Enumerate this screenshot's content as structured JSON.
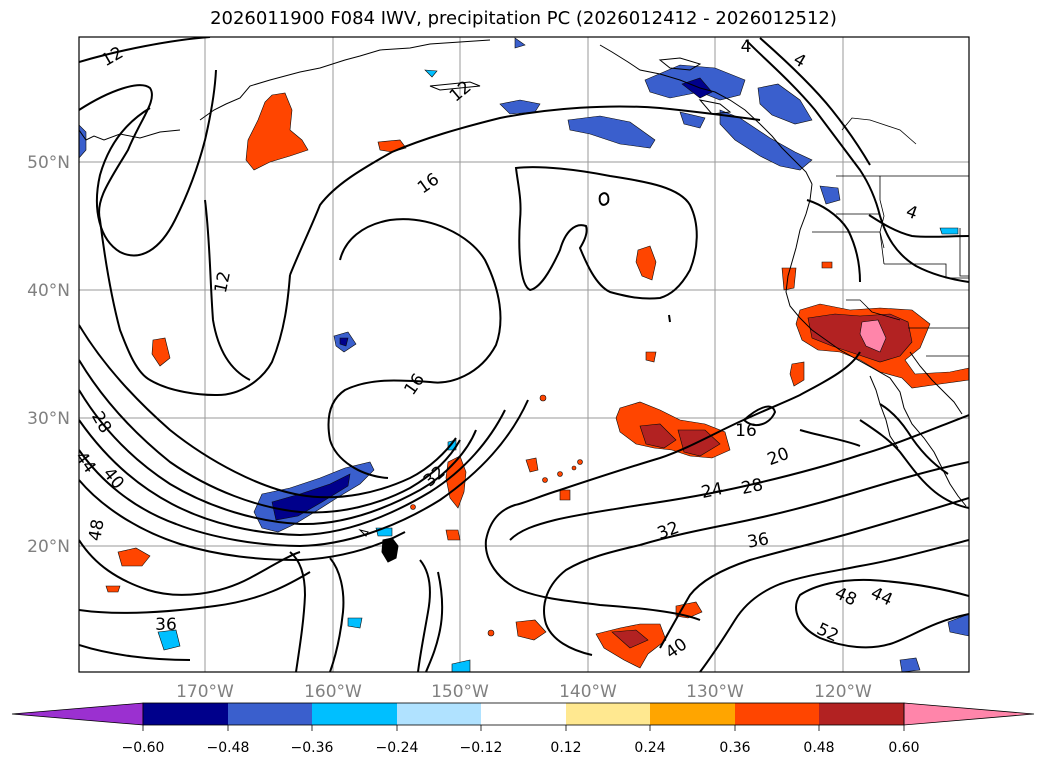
{
  "title": "2026011900 F084 IWV, precipitation PC (2026012412 - 2026012512)",
  "lat_labels": [
    "50°N",
    "40°N",
    "30°N",
    "20°N"
  ],
  "lon_labels": [
    "170°W",
    "160°W",
    "150°W",
    "140°W",
    "130°W",
    "120°W"
  ],
  "colorbar": {
    "ticks": [
      "−0.60",
      "−0.48",
      "−0.36",
      "−0.24",
      "−0.12",
      "0.12",
      "0.24",
      "0.36",
      "0.48",
      "0.60"
    ],
    "colors": [
      "#9b30d0",
      "#00008b",
      "#3a5fcd",
      "#00bfff",
      "#b0e2ff",
      "#ffffff",
      "#ffe890",
      "#ffa500",
      "#ff4500",
      "#b22222",
      "#ff85aa"
    ]
  },
  "contour_labels": [
    "12",
    "12",
    "12",
    "4",
    "4",
    "4",
    "16",
    "16",
    "16",
    "20",
    "24",
    "28",
    "28",
    "32",
    "32",
    "36",
    "36",
    "40",
    "40",
    "44",
    "44",
    "48",
    "48",
    "52"
  ]
}
